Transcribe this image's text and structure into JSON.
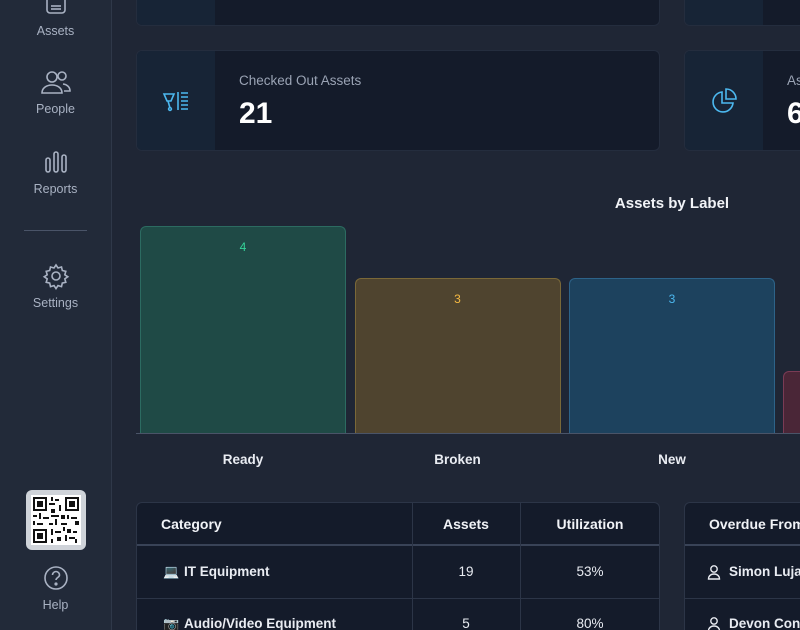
{
  "sidebar": {
    "items": [
      {
        "label": "Assets",
        "icon": "box-icon"
      },
      {
        "label": "People",
        "icon": "people-icon"
      },
      {
        "label": "Reports",
        "icon": "bar-chart-icon"
      },
      {
        "label": "Settings",
        "icon": "gear-icon"
      },
      {
        "label": "Help",
        "icon": "help-icon"
      }
    ]
  },
  "cards": [
    {
      "label": "Checked Out Assets",
      "value": "21",
      "icon": "checkout-icon"
    },
    {
      "label": "As",
      "value": "6",
      "icon": "pie-chart-icon"
    }
  ],
  "chart_data": {
    "type": "bar",
    "title": "Assets by Label",
    "categories": [
      "Ready",
      "Broken",
      "New"
    ],
    "values": [
      4,
      3,
      3
    ],
    "colors": [
      "#1f4a46",
      "#4f442f",
      "#1d425e"
    ],
    "label_colors": [
      "#34d399",
      "#f5b942",
      "#4cb8ef"
    ],
    "xlabel": "",
    "ylabel": ""
  },
  "category_table": {
    "headers": [
      "Category",
      "Assets",
      "Utilization"
    ],
    "rows": [
      {
        "icon": "💻",
        "name": "IT Equipment",
        "assets": "19",
        "utilization": "53%"
      },
      {
        "icon": "📷",
        "name": "Audio/Video Equipment",
        "assets": "5",
        "utilization": "80%"
      }
    ]
  },
  "overdue_table": {
    "header": "Overdue From",
    "rows": [
      {
        "name": "Simon Luja"
      },
      {
        "name": "Devon Con"
      }
    ]
  }
}
